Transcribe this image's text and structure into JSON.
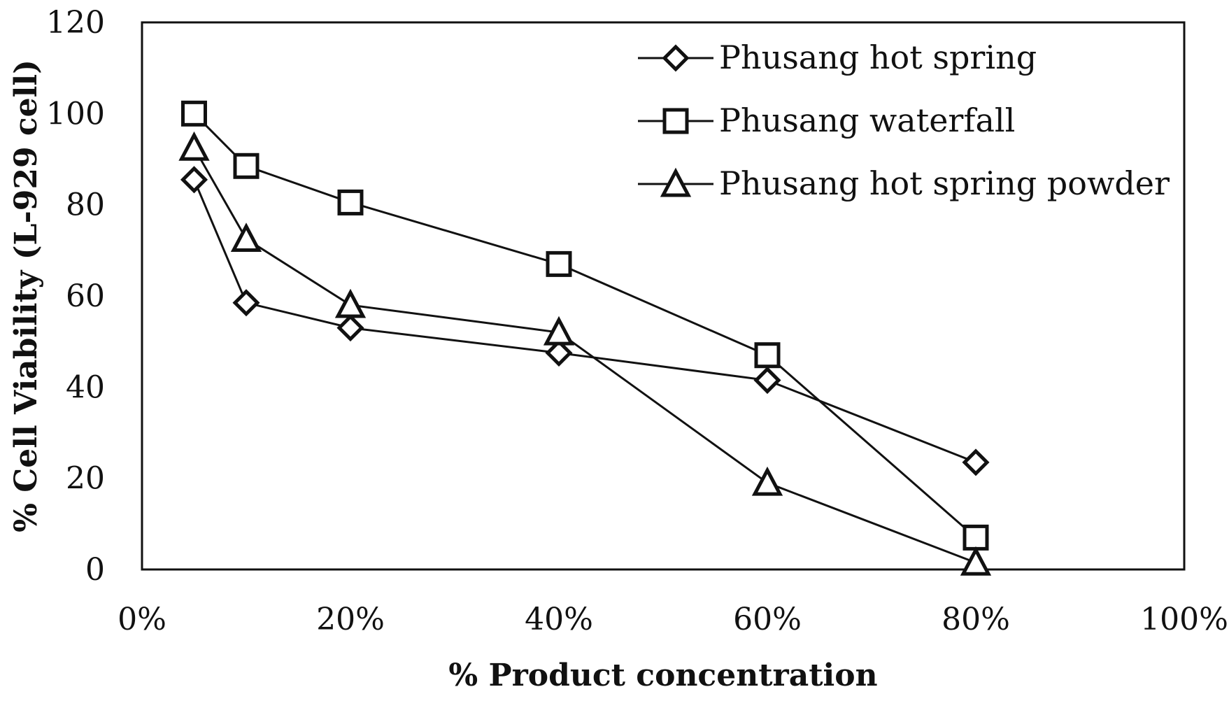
{
  "chart_data": {
    "type": "line",
    "title": "",
    "xlabel": "% Product concentration",
    "ylabel": "% Cell Viability (L-929 cell)",
    "xlim": [
      0,
      100
    ],
    "ylim": [
      0,
      120
    ],
    "x_ticks": [
      0,
      20,
      40,
      60,
      80,
      100
    ],
    "x_tick_labels": [
      "0%",
      "20%",
      "40%",
      "60%",
      "80%",
      "100%"
    ],
    "y_ticks": [
      0,
      20,
      40,
      60,
      80,
      100,
      120
    ],
    "y_tick_labels": [
      "0",
      "20",
      "40",
      "60",
      "80",
      "100",
      "120"
    ],
    "grid": false,
    "legend_position": "top-right",
    "series": [
      {
        "name": "Phusang hot spring",
        "marker": "diamond",
        "x": [
          5,
          10,
          20,
          40,
          60,
          80
        ],
        "values": [
          85.5,
          58.5,
          53,
          47.5,
          41.5,
          23.5
        ]
      },
      {
        "name": "Phusang waterfall",
        "marker": "square",
        "x": [
          5,
          10,
          20,
          40,
          60,
          80
        ],
        "values": [
          100,
          88.5,
          80.5,
          67,
          47,
          7
        ]
      },
      {
        "name": "Phusang hot spring powder",
        "marker": "triangle",
        "x": [
          5,
          10,
          20,
          40,
          60,
          80
        ],
        "values": [
          92.5,
          72.5,
          58,
          52,
          19,
          1.5
        ]
      }
    ]
  }
}
